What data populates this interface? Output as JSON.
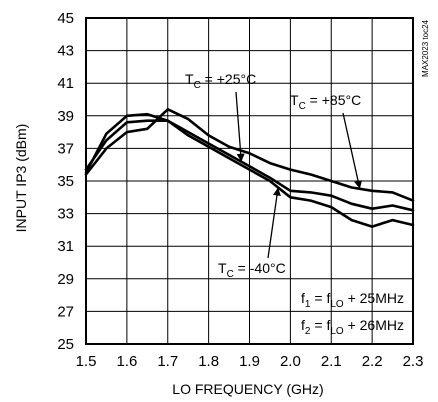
{
  "chart_data": {
    "type": "line",
    "xlabel": "LO FREQUENCY (GHz)",
    "ylabel": "INPUT IP3 (dBm)",
    "xlim": [
      1.5,
      2.3
    ],
    "ylim": [
      25,
      45
    ],
    "x_ticks": [
      "1.5",
      "1.6",
      "1.7",
      "1.8",
      "1.9",
      "2.0",
      "2.1",
      "2.2",
      "2.3"
    ],
    "y_ticks": [
      "25",
      "27",
      "29",
      "31",
      "33",
      "35",
      "37",
      "39",
      "41",
      "43",
      "45"
    ],
    "grid": true,
    "watermark": "MAX2023 toc24",
    "series": [
      {
        "name": "+25°C",
        "x": [
          1.5,
          1.55,
          1.6,
          1.65,
          1.7,
          1.75,
          1.8,
          1.85,
          1.9,
          1.95,
          2.0,
          2.05,
          2.1,
          2.15,
          2.2,
          2.25,
          2.3
        ],
        "y": [
          35.7,
          37.5,
          38.6,
          38.7,
          38.7,
          38.0,
          37.3,
          36.6,
          35.9,
          35.2,
          34.4,
          34.3,
          34.1,
          33.6,
          33.3,
          33.5,
          33.2
        ]
      },
      {
        "name": "+85°C",
        "x": [
          1.5,
          1.55,
          1.6,
          1.65,
          1.7,
          1.75,
          1.8,
          1.85,
          1.9,
          1.95,
          2.0,
          2.05,
          2.1,
          2.15,
          2.2,
          2.25,
          2.3
        ],
        "y": [
          35.4,
          37.0,
          38.0,
          38.2,
          39.4,
          38.8,
          37.8,
          37.1,
          36.7,
          36.1,
          35.7,
          35.4,
          35.0,
          34.6,
          34.4,
          34.3,
          33.8
        ]
      },
      {
        "name": "-40°C",
        "x": [
          1.5,
          1.55,
          1.6,
          1.65,
          1.7,
          1.75,
          1.8,
          1.85,
          1.9,
          1.95,
          2.0,
          2.05,
          2.1,
          2.15,
          2.2,
          2.25,
          2.3
        ],
        "y": [
          35.5,
          37.9,
          39.0,
          39.1,
          38.7,
          37.8,
          37.1,
          36.4,
          35.7,
          35.0,
          34.0,
          33.8,
          33.4,
          32.6,
          32.2,
          32.6,
          32.3
        ]
      }
    ],
    "annotations": [
      {
        "prefix": "T",
        "sub": "C",
        "text": " = +25°C",
        "series": 0
      },
      {
        "prefix": "T",
        "sub": "C",
        "text": " = +85°C",
        "series": 1
      },
      {
        "prefix": "T",
        "sub": "C",
        "text": " = -40°C",
        "series": 2
      }
    ],
    "conditions": [
      {
        "f": "f",
        "fsub": "1",
        "eq": " = f",
        "lo": "LO",
        "rest": " + 25MHz"
      },
      {
        "f": "f",
        "fsub": "2",
        "eq": " = f",
        "lo": "LO",
        "rest": " + 26MHz"
      }
    ]
  }
}
